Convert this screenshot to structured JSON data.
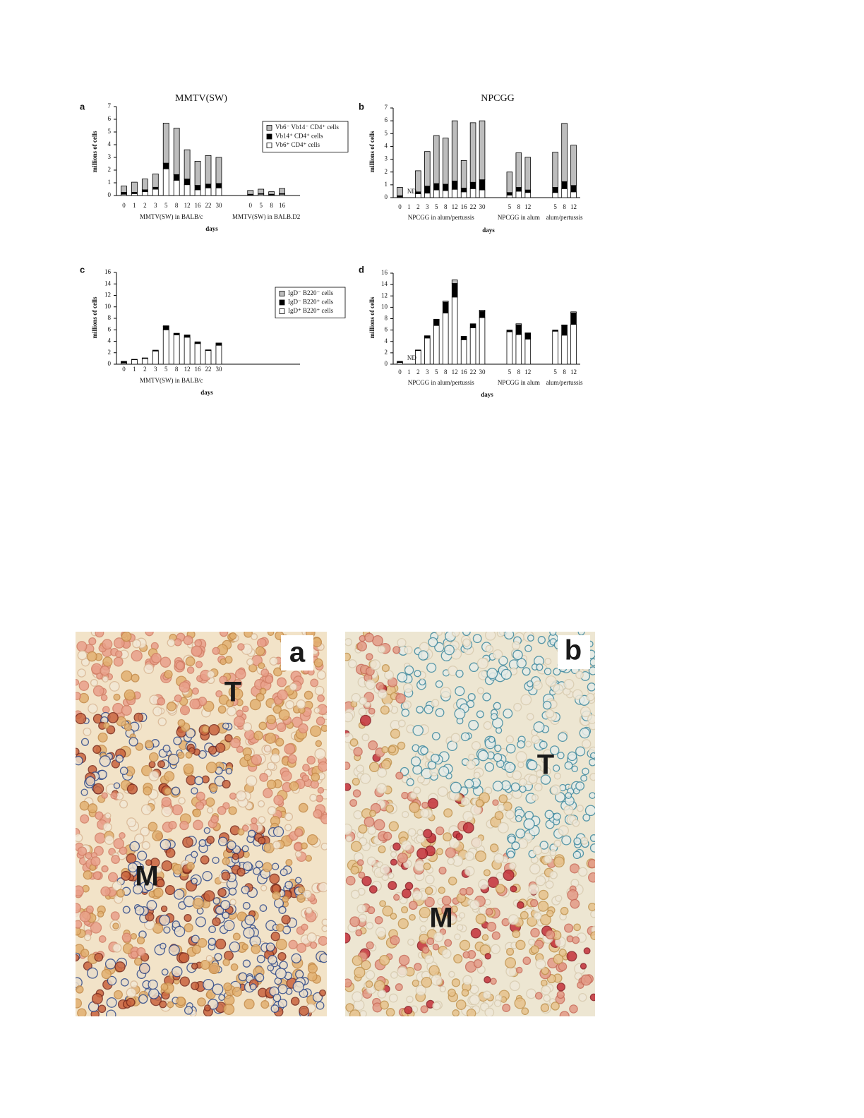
{
  "chart_data": [
    {
      "type": "bar",
      "stacked": true,
      "panel": "a",
      "title": "MMTV(SW)",
      "y_label": "millions of cells",
      "x_label": "days",
      "ylim": [
        0,
        7
      ],
      "yticks": [
        0,
        1,
        2,
        3,
        4,
        5,
        6,
        7
      ],
      "legend": "upper right",
      "groups": [
        {
          "label": "MMTV(SW) in BALB/c",
          "categories": [
            "0",
            "1",
            "2",
            "3",
            "5",
            "8",
            "12",
            "16",
            "22",
            "30"
          ]
        },
        {
          "label": "MMTV(SW) in BALB.D2",
          "categories": [
            "0",
            "5",
            "8",
            "16"
          ]
        }
      ],
      "series": [
        {
          "name": "Vb6⁺ CD4⁺ cells",
          "color": "#ffffff",
          "values": [
            0.1,
            0.15,
            0.3,
            0.5,
            2.1,
            1.2,
            0.85,
            0.45,
            0.6,
            0.6,
            0.05,
            0.1,
            0.05,
            0.1
          ]
        },
        {
          "name": "Vb14⁺ CD4⁺ cells",
          "color": "#000000",
          "values": [
            0.15,
            0.1,
            0.15,
            0.15,
            0.45,
            0.45,
            0.45,
            0.35,
            0.3,
            0.35,
            0.05,
            0.05,
            0.05,
            0.05
          ]
        },
        {
          "name": "Vb6⁻ Vb14⁻ CD4⁺ cells",
          "color": "#bdbdbd",
          "values": [
            0.5,
            0.8,
            0.85,
            1.05,
            3.15,
            3.65,
            2.3,
            1.9,
            2.25,
            2.05,
            0.3,
            0.35,
            0.2,
            0.4
          ]
        }
      ]
    },
    {
      "type": "bar",
      "stacked": true,
      "panel": "b",
      "title": "NPCGG",
      "y_label": "millions of cells",
      "x_label": "days",
      "ylim": [
        0,
        7
      ],
      "yticks": [
        0,
        1,
        2,
        3,
        4,
        5,
        6,
        7
      ],
      "annotations": [
        {
          "text": "ND",
          "category_index": 1
        }
      ],
      "groups": [
        {
          "label": "NPCGG in alum/pertussis",
          "categories": [
            "0",
            "1",
            "2",
            "3",
            "5",
            "8",
            "12",
            "16",
            "22",
            "30"
          ]
        },
        {
          "label": "NPCGG in alum",
          "categories": [
            "5",
            "8",
            "12"
          ]
        },
        {
          "label": "alum/pertussis",
          "categories": [
            "5",
            "8",
            "12"
          ]
        }
      ],
      "series": [
        {
          "color": "#ffffff",
          "values": [
            0.05,
            null,
            0.3,
            0.35,
            0.6,
            0.55,
            0.65,
            0.45,
            0.7,
            0.6,
            0.2,
            0.5,
            0.4,
            0.4,
            0.7,
            0.45
          ]
        },
        {
          "color": "#000000",
          "values": [
            0.1,
            null,
            0.15,
            0.55,
            0.5,
            0.5,
            0.65,
            0.3,
            0.5,
            0.8,
            0.2,
            0.3,
            0.2,
            0.4,
            0.55,
            0.5
          ]
        },
        {
          "color": "#bdbdbd",
          "values": [
            0.65,
            null,
            1.65,
            2.7,
            3.75,
            3.6,
            4.7,
            2.15,
            4.65,
            4.6,
            1.6,
            2.7,
            2.55,
            2.75,
            4.55,
            3.15
          ]
        }
      ]
    },
    {
      "type": "bar",
      "stacked": true,
      "panel": "c",
      "y_label": "millions of cells",
      "x_label": "days",
      "ylim": [
        0,
        16
      ],
      "yticks": [
        0,
        2,
        4,
        6,
        8,
        10,
        12,
        14,
        16
      ],
      "legend": "upper right",
      "groups": [
        {
          "label": "MMTV(SW) in BALB/c",
          "categories": [
            "0",
            "1",
            "2",
            "3",
            "5",
            "8",
            "12",
            "16",
            "22",
            "30"
          ]
        }
      ],
      "series": [
        {
          "name": "IgD⁺ B220⁺ cells",
          "color": "#ffffff",
          "values": [
            0.2,
            0.8,
            1.0,
            2.3,
            6.0,
            5.1,
            4.7,
            3.6,
            2.4,
            3.3
          ]
        },
        {
          "name": "IgD⁻ B220⁺ cells",
          "color": "#000000",
          "values": [
            0.3,
            0.05,
            0.1,
            0.15,
            0.6,
            0.3,
            0.4,
            0.3,
            0.1,
            0.4
          ]
        },
        {
          "name": "IgD⁻ B220⁻ cells",
          "color": "#bdbdbd",
          "values": [
            0,
            0,
            0,
            0,
            0.1,
            0,
            0,
            0,
            0,
            0
          ]
        }
      ]
    },
    {
      "type": "bar",
      "stacked": true,
      "panel": "d",
      "y_label": "millions of cells",
      "x_label": "days",
      "ylim": [
        0,
        16
      ],
      "yticks": [
        0,
        2,
        4,
        6,
        8,
        10,
        12,
        14,
        16
      ],
      "annotations": [
        {
          "text": "ND",
          "category_index": 1
        }
      ],
      "groups": [
        {
          "label": "NPCGG in alum/pertussis",
          "categories": [
            "0",
            "1",
            "2",
            "3",
            "5",
            "8",
            "12",
            "16",
            "22",
            "30"
          ]
        },
        {
          "label": "NPCGG in alum",
          "categories": [
            "5",
            "8",
            "12"
          ]
        },
        {
          "label": "alum/pertussis",
          "categories": [
            "5",
            "8",
            "12"
          ]
        }
      ],
      "series": [
        {
          "color": "#ffffff",
          "values": [
            0.3,
            null,
            2.4,
            4.6,
            6.8,
            9.0,
            11.8,
            4.3,
            6.4,
            8.2,
            5.7,
            5.2,
            4.4,
            5.8,
            5.1,
            7.0
          ]
        },
        {
          "color": "#000000",
          "values": [
            0.2,
            null,
            0.1,
            0.4,
            1.0,
            1.9,
            2.4,
            0.6,
            0.7,
            1.1,
            0.3,
            1.7,
            1.1,
            0.2,
            1.7,
            2.0
          ]
        },
        {
          "color": "#bdbdbd",
          "values": [
            0,
            null,
            0,
            0,
            0.1,
            0.2,
            0.6,
            0,
            0,
            0.2,
            0,
            0.2,
            0,
            0,
            0.1,
            0.2
          ]
        }
      ]
    }
  ],
  "micrographs": [
    {
      "letter": "a",
      "labels": [
        "T",
        "M"
      ]
    },
    {
      "letter": "b",
      "labels": [
        "T",
        "M"
      ]
    }
  ]
}
